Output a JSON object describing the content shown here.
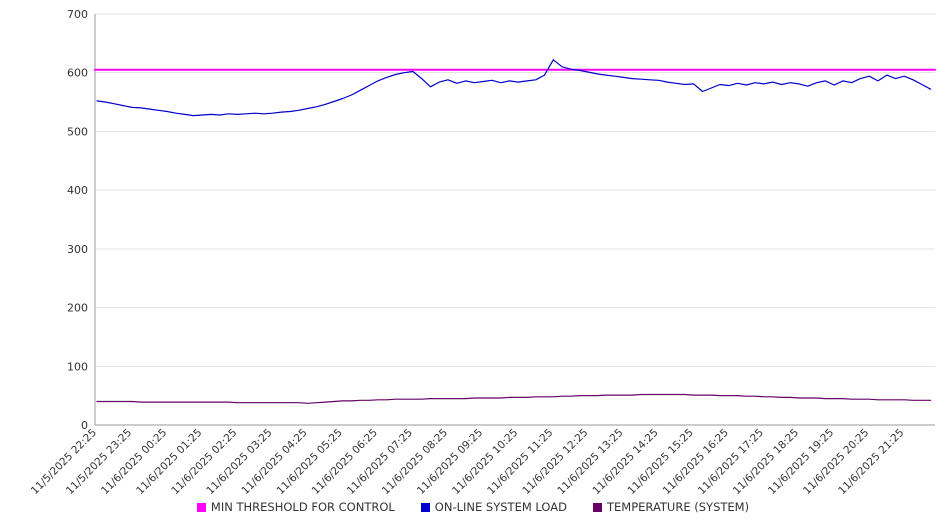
{
  "chart_data": {
    "type": "line",
    "title": "",
    "xlabel": "",
    "ylabel": "",
    "ylim": [
      0,
      700
    ],
    "y_ticks": [
      0,
      100,
      200,
      300,
      400,
      500,
      600,
      700
    ],
    "grid": "horizontal",
    "legend_position": "bottom",
    "background_color": "#ffffff",
    "x_tick_labels": [
      "11/5/2025 22:25",
      "11/5/2025 23:25",
      "11/6/2025 00:25",
      "11/6/2025 01:25",
      "11/6/2025 02:25",
      "11/6/2025 03:25",
      "11/6/2025 04:25",
      "11/6/2025 05:25",
      "11/6/2025 06:25",
      "11/6/2025 07:25",
      "11/6/2025 08:25",
      "11/6/2025 09:25",
      "11/6/2025 10:25",
      "11/6/2025 11:25",
      "11/6/2025 12:25",
      "11/6/2025 13:25",
      "11/6/2025 14:25",
      "11/6/2025 15:25",
      "11/6/2025 16:25",
      "11/6/2025 17:25",
      "11/6/2025 18:25",
      "11/6/2025 19:25",
      "11/6/2025 20:25",
      "11/6/2025 21:25"
    ],
    "points_per_tick": 4,
    "series": [
      {
        "name": "MIN THRESHOLD FOR CONTROL",
        "color": "#ff00ff",
        "constant": 605
      },
      {
        "name": "ON-LINE SYSTEM LOAD",
        "color": "#0000cd",
        "values": [
          552,
          550,
          547,
          544,
          541,
          540,
          538,
          536,
          534,
          531,
          529,
          527,
          528,
          529,
          528,
          530,
          529,
          530,
          531,
          530,
          531,
          533,
          534,
          536,
          539,
          542,
          546,
          551,
          556,
          562,
          570,
          578,
          586,
          592,
          597,
          600,
          602,
          590,
          576,
          584,
          588,
          582,
          586,
          583,
          585,
          587,
          583,
          586,
          584,
          586,
          588,
          596,
          622,
          610,
          606,
          604,
          601,
          598,
          596,
          594,
          592,
          590,
          589,
          588,
          587,
          584,
          582,
          580,
          581,
          568,
          574,
          580,
          578,
          582,
          579,
          583,
          581,
          584,
          580,
          583,
          581,
          577,
          583,
          586,
          579,
          586,
          583,
          590,
          594,
          586,
          596,
          590,
          594,
          588,
          580,
          572
        ]
      },
      {
        "name": "TEMPERATURE (SYSTEM)",
        "color": "#660066",
        "values": [
          40,
          40,
          40,
          40,
          40,
          39,
          39,
          39,
          39,
          39,
          39,
          39,
          39,
          39,
          39,
          39,
          38,
          38,
          38,
          38,
          38,
          38,
          38,
          38,
          37,
          38,
          39,
          40,
          41,
          41,
          42,
          42,
          43,
          43,
          44,
          44,
          44,
          44,
          45,
          45,
          45,
          45,
          45,
          46,
          46,
          46,
          46,
          47,
          47,
          47,
          48,
          48,
          48,
          49,
          49,
          50,
          50,
          50,
          51,
          51,
          51,
          51,
          52,
          52,
          52,
          52,
          52,
          52,
          51,
          51,
          51,
          50,
          50,
          50,
          49,
          49,
          48,
          48,
          47,
          47,
          46,
          46,
          46,
          45,
          45,
          45,
          44,
          44,
          44,
          43,
          43,
          43,
          43,
          42,
          42,
          42
        ]
      }
    ]
  }
}
